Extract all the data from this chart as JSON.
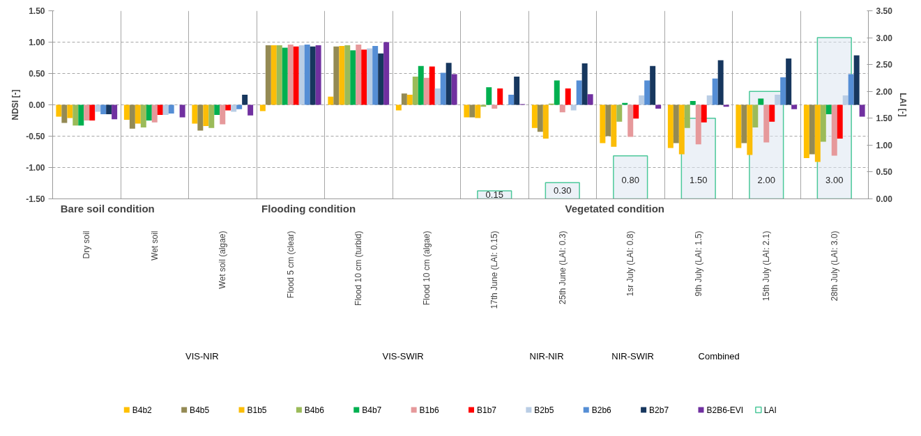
{
  "chart_data": {
    "type": "bar",
    "ylabel": "NDSI [-]",
    "y2label": "LAI [-]",
    "categories": [
      "Dry soil",
      "Wet soil",
      "Wet soil (algae)",
      "Flood 5 cm (clear)",
      "Flood 10 cm (turbid)",
      "Flood 10 cm (algae)",
      "17th June (LAI: 0.15)",
      "25th June (LAI: 0.3)",
      "1sr July (LAI: 0.8)",
      "9th July (LAI: 1.5)",
      "15th July (LAI: 2.1)",
      "28th July (LAI: 3.0)"
    ],
    "ylim": [
      -1.5,
      1.5
    ],
    "yticks": [
      {
        "value": -1.5,
        "label": "-1.50"
      },
      {
        "value": -1.0,
        "label": "-1.00"
      },
      {
        "value": -0.5,
        "label": "-0.50"
      },
      {
        "value": 0,
        "label": "0.00"
      },
      {
        "value": 0.5,
        "label": "0.50"
      },
      {
        "value": 1.0,
        "label": "1.00"
      },
      {
        "value": 1.5,
        "label": "1.50"
      }
    ],
    "y2lim": [
      0,
      3.5
    ],
    "y2ticks": [
      {
        "value": 0,
        "label": "0.00"
      },
      {
        "value": 0.5,
        "label": "0.50"
      },
      {
        "value": 1.0,
        "label": "1.00"
      },
      {
        "value": 1.5,
        "label": "1.50"
      },
      {
        "value": 2.0,
        "label": "2.00"
      },
      {
        "value": 2.5,
        "label": "2.50"
      },
      {
        "value": 3.0,
        "label": "3.00"
      },
      {
        "value": 3.5,
        "label": "3.50"
      }
    ],
    "grid": true,
    "legend": "bottom",
    "annotations": [
      "Bare soil condition",
      "Flooding  condition",
      "Vegetated condition",
      "VIS-NIR",
      "VIS-SWIR",
      "NIR-NIR",
      "NIR-SWIR",
      "Combined"
    ],
    "series": [
      {
        "name": "B4b2",
        "color": "#ffc000",
        "values": [
          -0.19,
          -0.24,
          -0.3,
          -0.1,
          0.13,
          -0.09,
          -0.2,
          -0.37,
          -0.61,
          -0.69,
          -0.69,
          -0.85
        ]
      },
      {
        "name": "B4b5",
        "color": "#948a54",
        "values": [
          -0.29,
          -0.38,
          -0.41,
          0.95,
          0.93,
          0.18,
          -0.2,
          -0.43,
          -0.5,
          -0.61,
          -0.61,
          -0.79
        ]
      },
      {
        "name": "B1b5",
        "color": "#fbbd08",
        "values": [
          -0.21,
          -0.3,
          -0.34,
          0.95,
          0.94,
          0.16,
          -0.21,
          -0.54,
          -0.67,
          -0.79,
          -0.8,
          -0.91
        ]
      },
      {
        "name": "B4b6",
        "color": "#9bbb59",
        "values": [
          -0.33,
          -0.36,
          -0.37,
          0.95,
          0.95,
          0.45,
          -0.03,
          0.02,
          -0.27,
          -0.37,
          -0.36,
          -0.59
        ]
      },
      {
        "name": "B4b7",
        "color": "#00b050",
        "values": [
          -0.33,
          -0.25,
          -0.16,
          0.91,
          0.87,
          0.62,
          0.28,
          0.39,
          0.03,
          0.06,
          0.1,
          -0.15
        ]
      },
      {
        "name": "B1b6",
        "color": "#e6999b",
        "values": [
          -0.25,
          -0.28,
          -0.31,
          0.96,
          0.96,
          0.43,
          -0.06,
          -0.12,
          -0.51,
          -0.63,
          -0.6,
          -0.81
        ]
      },
      {
        "name": "B1b7",
        "color": "#ff0000",
        "values": [
          -0.25,
          -0.16,
          -0.09,
          0.93,
          0.88,
          0.61,
          0.26,
          0.26,
          -0.22,
          -0.28,
          -0.27,
          -0.54
        ]
      },
      {
        "name": "B2b5",
        "color": "#b9cde5",
        "values": [
          -0.11,
          -0.16,
          -0.11,
          0.95,
          0.9,
          0.26,
          null,
          -0.09,
          0.15,
          0.15,
          0.16,
          0.15
        ]
      },
      {
        "name": "B2b6",
        "color": "#558ed5",
        "values": [
          -0.15,
          -0.14,
          -0.07,
          0.96,
          0.94,
          0.51,
          0.16,
          0.39,
          0.39,
          0.42,
          0.44,
          0.49
        ]
      },
      {
        "name": "B2b7",
        "color": "#17375e",
        "values": [
          -0.15,
          null,
          0.16,
          0.93,
          0.82,
          0.67,
          0.45,
          0.66,
          0.62,
          0.71,
          0.74,
          0.79
        ]
      },
      {
        "name": "B2B6-EVI",
        "color": "#7030a0",
        "values": [
          -0.23,
          -0.2,
          -0.17,
          0.95,
          1.0,
          0.49,
          0.01,
          0.17,
          -0.06,
          -0.03,
          -0.07,
          -0.19
        ]
      },
      {
        "name": "LAI",
        "color": "#4bc89a",
        "axis": "y2",
        "values": [
          null,
          null,
          null,
          null,
          null,
          null,
          0.15,
          0.3,
          0.8,
          1.5,
          2.0,
          3.0
        ],
        "value_labels": [
          null,
          null,
          null,
          null,
          null,
          null,
          "0.15",
          "0.30",
          "0.80",
          "1.50",
          "2.00",
          "3.00"
        ]
      }
    ]
  }
}
